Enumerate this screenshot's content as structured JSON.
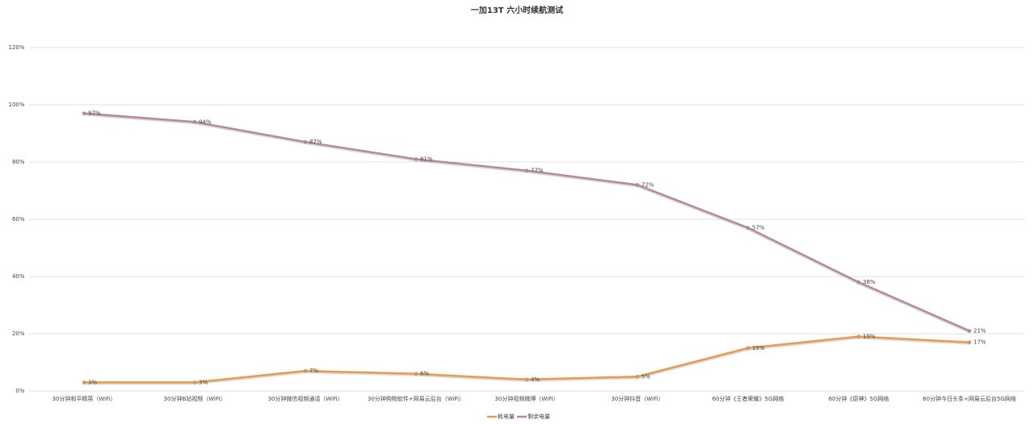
{
  "chart_data": {
    "type": "line",
    "title": "一加13T 六小时续航测试",
    "categories": [
      "30分钟和平精英（WiFi）",
      "30分钟B站视频（WiFi）",
      "30分钟微信视频通话（WiFi）",
      "30分钟购物软件+网易云后台（WiFi）",
      "30分钟视频微博（WiFi）",
      "30分钟抖音（WiFi）",
      "60分钟《王者荣耀》5G网络",
      "60分钟《原神》5G网络",
      "60分钟今日头条+网易云后台5G网络"
    ],
    "series": [
      {
        "name": "耗电量",
        "color": "#e89b4c",
        "values": [
          3,
          3,
          7,
          6,
          4,
          5,
          15,
          19,
          17
        ],
        "value_labels": [
          "3%",
          "3%",
          "7%",
          "6%",
          "4%",
          "5%",
          "15%",
          "19%",
          "17%"
        ]
      },
      {
        "name": "剩余电量",
        "color": "#b78a9b",
        "values": [
          97,
          94,
          87,
          81,
          77,
          72,
          57,
          38,
          21
        ],
        "value_labels": [
          "97%",
          "94%",
          "87%",
          "81%",
          "77%",
          "72%",
          "57%",
          "38%",
          "21%"
        ]
      }
    ],
    "ylim": [
      0,
      120
    ],
    "yticks": [
      {
        "value": 0,
        "label": "0%"
      },
      {
        "value": 20,
        "label": "20%"
      },
      {
        "value": 40,
        "label": "40%"
      },
      {
        "value": 60,
        "label": "60%"
      },
      {
        "value": 80,
        "label": "80%"
      },
      {
        "value": 100,
        "label": "100%"
      },
      {
        "value": 120,
        "label": "120%"
      }
    ],
    "grid": true,
    "legend": "bottom"
  }
}
